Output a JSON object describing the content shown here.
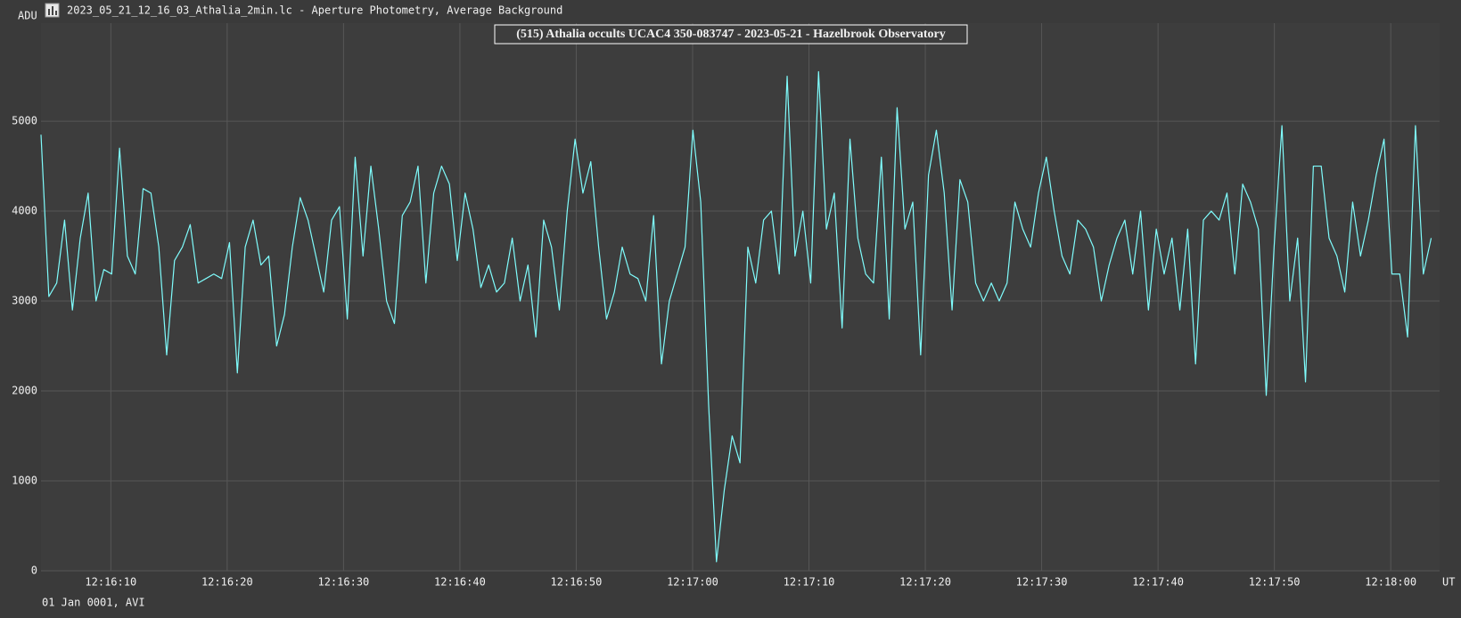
{
  "header": {
    "title": "2023_05_21_12_16_03_Athalia_2min.lc - Aperture Photometry, Average Background"
  },
  "chart_data": {
    "type": "line",
    "title": "(515) Athalia occults UCAC4 350-083747 - 2023-05-21 - Hazelbrook Observatory",
    "y_label": "ADU",
    "x_label": "UT",
    "footer": "01 Jan 0001, AVI",
    "color": "#7ffcfc",
    "grid": true,
    "xlim": [
      4,
      124.2
    ],
    "ylim": [
      0,
      6090
    ],
    "yticks": [
      0,
      1000,
      2000,
      3000,
      4000,
      5000
    ],
    "xticks": [
      {
        "value": 10,
        "label": "12:16:10"
      },
      {
        "value": 20,
        "label": "12:16:20"
      },
      {
        "value": 30,
        "label": "12:16:30"
      },
      {
        "value": 40,
        "label": "12:16:40"
      },
      {
        "value": 50,
        "label": "12:16:50"
      },
      {
        "value": 60,
        "label": "12:17:00"
      },
      {
        "value": 70,
        "label": "12:17:10"
      },
      {
        "value": 80,
        "label": "12:17:20"
      },
      {
        "value": 90,
        "label": "12:17:30"
      },
      {
        "value": 100,
        "label": "12:17:40"
      },
      {
        "value": 110,
        "label": "12:17:50"
      },
      {
        "value": 120,
        "label": "12:18:00"
      }
    ],
    "x": [
      4,
      4.675,
      5.35,
      6.025,
      6.7,
      7.375,
      8.05,
      8.725,
      9.4,
      10.075,
      10.75,
      11.425,
      12.1,
      12.775,
      13.45,
      14.125,
      14.8,
      15.475,
      16.15,
      16.825,
      17.5,
      18.175,
      18.85,
      19.525,
      20.2,
      20.875,
      21.55,
      22.225,
      22.9,
      23.575,
      24.25,
      24.925,
      25.6,
      26.275,
      26.95,
      27.625,
      28.3,
      28.975,
      29.65,
      30.325,
      31,
      31.675,
      32.35,
      33.025,
      33.7,
      34.375,
      35.05,
      35.725,
      36.4,
      37.075,
      37.75,
      38.425,
      39.1,
      39.775,
      40.45,
      41.125,
      41.8,
      42.475,
      43.15,
      43.825,
      44.5,
      45.175,
      45.85,
      46.525,
      47.2,
      47.875,
      48.55,
      49.225,
      49.9,
      50.575,
      51.25,
      51.925,
      52.6,
      53.275,
      53.95,
      54.625,
      55.3,
      55.975,
      56.65,
      57.325,
      58,
      58.675,
      59.35,
      60.025,
      60.7,
      61.375,
      62.05,
      62.725,
      63.4,
      64.075,
      64.75,
      65.425,
      66.1,
      66.775,
      67.45,
      68.125,
      68.8,
      69.475,
      70.15,
      70.825,
      71.5,
      72.175,
      72.85,
      73.525,
      74.2,
      74.875,
      75.55,
      76.225,
      76.9,
      77.575,
      78.25,
      78.925,
      79.6,
      80.275,
      80.95,
      81.625,
      82.3,
      82.975,
      83.65,
      84.325,
      85,
      85.675,
      86.35,
      87.025,
      87.7,
      88.375,
      89.05,
      89.725,
      90.4,
      91.075,
      91.75,
      92.425,
      93.1,
      93.775,
      94.45,
      95.125,
      95.8,
      96.475,
      97.15,
      97.825,
      98.5,
      99.175,
      99.85,
      100.525,
      101.2,
      101.875,
      102.55,
      103.225,
      103.9,
      104.575,
      105.25,
      105.925,
      106.6,
      107.275,
      107.95,
      108.625,
      109.3,
      109.975,
      110.65,
      111.325,
      112,
      112.675,
      113.35,
      114.025,
      114.7,
      115.375,
      116.05,
      116.725,
      117.4,
      118.075,
      118.75,
      119.425,
      120.1,
      120.775,
      121.45,
      122.125,
      122.8,
      123.475
    ],
    "values": [
      4850,
      3050,
      3200,
      3900,
      2900,
      3700,
      4200,
      3000,
      3350,
      3300,
      4700,
      3500,
      3300,
      4250,
      4200,
      3600,
      2400,
      3450,
      3600,
      3850,
      3200,
      3250,
      3300,
      3250,
      3650,
      2200,
      3600,
      3900,
      3400,
      3500,
      2500,
      2850,
      3600,
      4150,
      3900,
      3500,
      3100,
      3900,
      4050,
      2800,
      4600,
      3500,
      4500,
      3800,
      3000,
      2750,
      3950,
      4100,
      4500,
      3200,
      4200,
      4500,
      4300,
      3450,
      4200,
      3800,
      3150,
      3400,
      3100,
      3200,
      3700,
      3000,
      3400,
      2600,
      3900,
      3600,
      2900,
      4000,
      4800,
      4200,
      4550,
      3600,
      2800,
      3100,
      3600,
      3300,
      3250,
      3000,
      3950,
      2300,
      3000,
      3300,
      3600,
      4900,
      4100,
      1850,
      100,
      900,
      1500,
      1200,
      3600,
      3200,
      3900,
      4000,
      3300,
      5500,
      3500,
      4000,
      3200,
      5550,
      3800,
      4200,
      2700,
      4800,
      3700,
      3300,
      3200,
      4600,
      2800,
      5150,
      3800,
      4100,
      2400,
      4400,
      4900,
      4200,
      2900,
      4350,
      4100,
      3200,
      3000,
      3200,
      3000,
      3200,
      4100,
      3800,
      3600,
      4200,
      4600,
      4000,
      3500,
      3300,
      3900,
      3800,
      3600,
      3000,
      3400,
      3700,
      3900,
      3300,
      4000,
      2900,
      3800,
      3300,
      3700,
      2900,
      3800,
      2300,
      3900,
      4000,
      3900,
      4200,
      3300,
      4300,
      4100,
      3800,
      1950,
      3600,
      4950,
      3000,
      3700,
      2100,
      4500,
      4500,
      3700,
      3500,
      3100,
      4100,
      3500,
      3900,
      4400,
      4800,
      3300,
      3300,
      2600,
      4950,
      3300,
      3700
    ]
  }
}
